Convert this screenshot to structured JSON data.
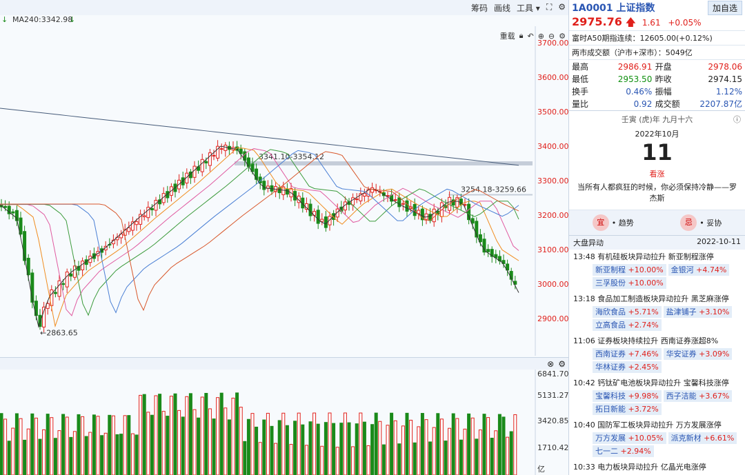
{
  "toolbar": {
    "chips": "筹码",
    "draw": "画线",
    "tools": "工具",
    "rights": "重载"
  },
  "ma": {
    "label": "MA240:3342.98"
  },
  "yaxis": {
    "price_ticks": [
      "3700.00",
      "3600.00",
      "3500.00",
      "3400.00",
      "3300.00",
      "3200.00",
      "3100.00",
      "3000.00",
      "2900.00"
    ],
    "vol_ticks": [
      "6841.70",
      "5131.27",
      "3420.85",
      "1710.42",
      "亿"
    ]
  },
  "annotations": {
    "range1": "3341.10-3354.12",
    "range2": "3254.18-3259.66",
    "low": "←2863.65"
  },
  "quote": {
    "code": "1A0001",
    "name": "上证指数",
    "add_button": "加自选",
    "price": "2975.76",
    "change": "1.61",
    "change_pct": "+0.05%",
    "futures": "富时A50期指连续：12605.00(+0.12%)",
    "turnover_all": "两市成交额（沪市+深市）：5049亿",
    "stats": [
      {
        "l1": "最高",
        "v1": "2986.91",
        "l2": "开盘",
        "v2": "2978.06",
        "c1": "red",
        "c2": "red"
      },
      {
        "l1": "最低",
        "v1": "2953.50",
        "l2": "昨收",
        "v2": "2974.15",
        "c1": "green",
        "c2": "black"
      },
      {
        "l1": "换手",
        "v1": "0.46%",
        "l2": "振幅",
        "v2": "1.12%",
        "c1": "blue",
        "c2": "blue"
      },
      {
        "l1": "量比",
        "v1": "0.92",
        "l2": "成交额",
        "v2": "2207.87亿",
        "c1": "blue",
        "c2": "blue"
      }
    ]
  },
  "calendar": {
    "lunar": "壬寅 (虎)年 九月十六",
    "month": "2022年10月",
    "day": "11",
    "verdict": "看涨",
    "quote": "当所有人都疯狂的时候，你必须保持冷静——罗杰斯",
    "good": "宜",
    "good_text": "• 趋势",
    "bad": "忌",
    "bad_text": "• 妥协"
  },
  "moves": {
    "title": "大盘异动",
    "date": "2022-10-11",
    "events": [
      {
        "time": "13:48",
        "text": "有机硅板块异动拉升 新亚制程涨停",
        "stocks": [
          [
            "新亚制程",
            "+10.00%"
          ],
          [
            "金银河",
            "+4.74%"
          ],
          [
            "三孚股份",
            "+10.00%"
          ]
        ]
      },
      {
        "time": "13:18",
        "text": "食品加工制造板块异动拉升 黑芝麻涨停",
        "stocks": [
          [
            "海欣食品",
            "+5.71%"
          ],
          [
            "盐津铺子",
            "+3.10%"
          ],
          [
            "立高食品",
            "+2.74%"
          ]
        ]
      },
      {
        "time": "11:06",
        "text": "证券板块持续拉升 西南证券涨超8%",
        "stocks": [
          [
            "西南证券",
            "+7.46%"
          ],
          [
            "华安证券",
            "+3.09%"
          ],
          [
            "华林证券",
            "+2.45%"
          ]
        ]
      },
      {
        "time": "10:42",
        "text": "钙钛矿电池板块异动拉升 宝馨科技涨停",
        "stocks": [
          [
            "宝馨科技",
            "+9.98%"
          ],
          [
            "西子洁能",
            "+3.67%"
          ],
          [
            "拓日新能",
            "+3.72%"
          ]
        ]
      },
      {
        "time": "10:40",
        "text": "国防军工板块异动拉升 万方发展涨停",
        "stocks": [
          [
            "万方发展",
            "+10.05%"
          ],
          [
            "派克新材",
            "+6.61%"
          ],
          [
            "七一二",
            "+2.94%"
          ]
        ]
      },
      {
        "time": "10:33",
        "text": "电力板块异动拉升 亿晶光电涨停",
        "stocks": []
      }
    ]
  },
  "colors": {
    "up": "#e0201b",
    "down": "#1a8a1a"
  }
}
